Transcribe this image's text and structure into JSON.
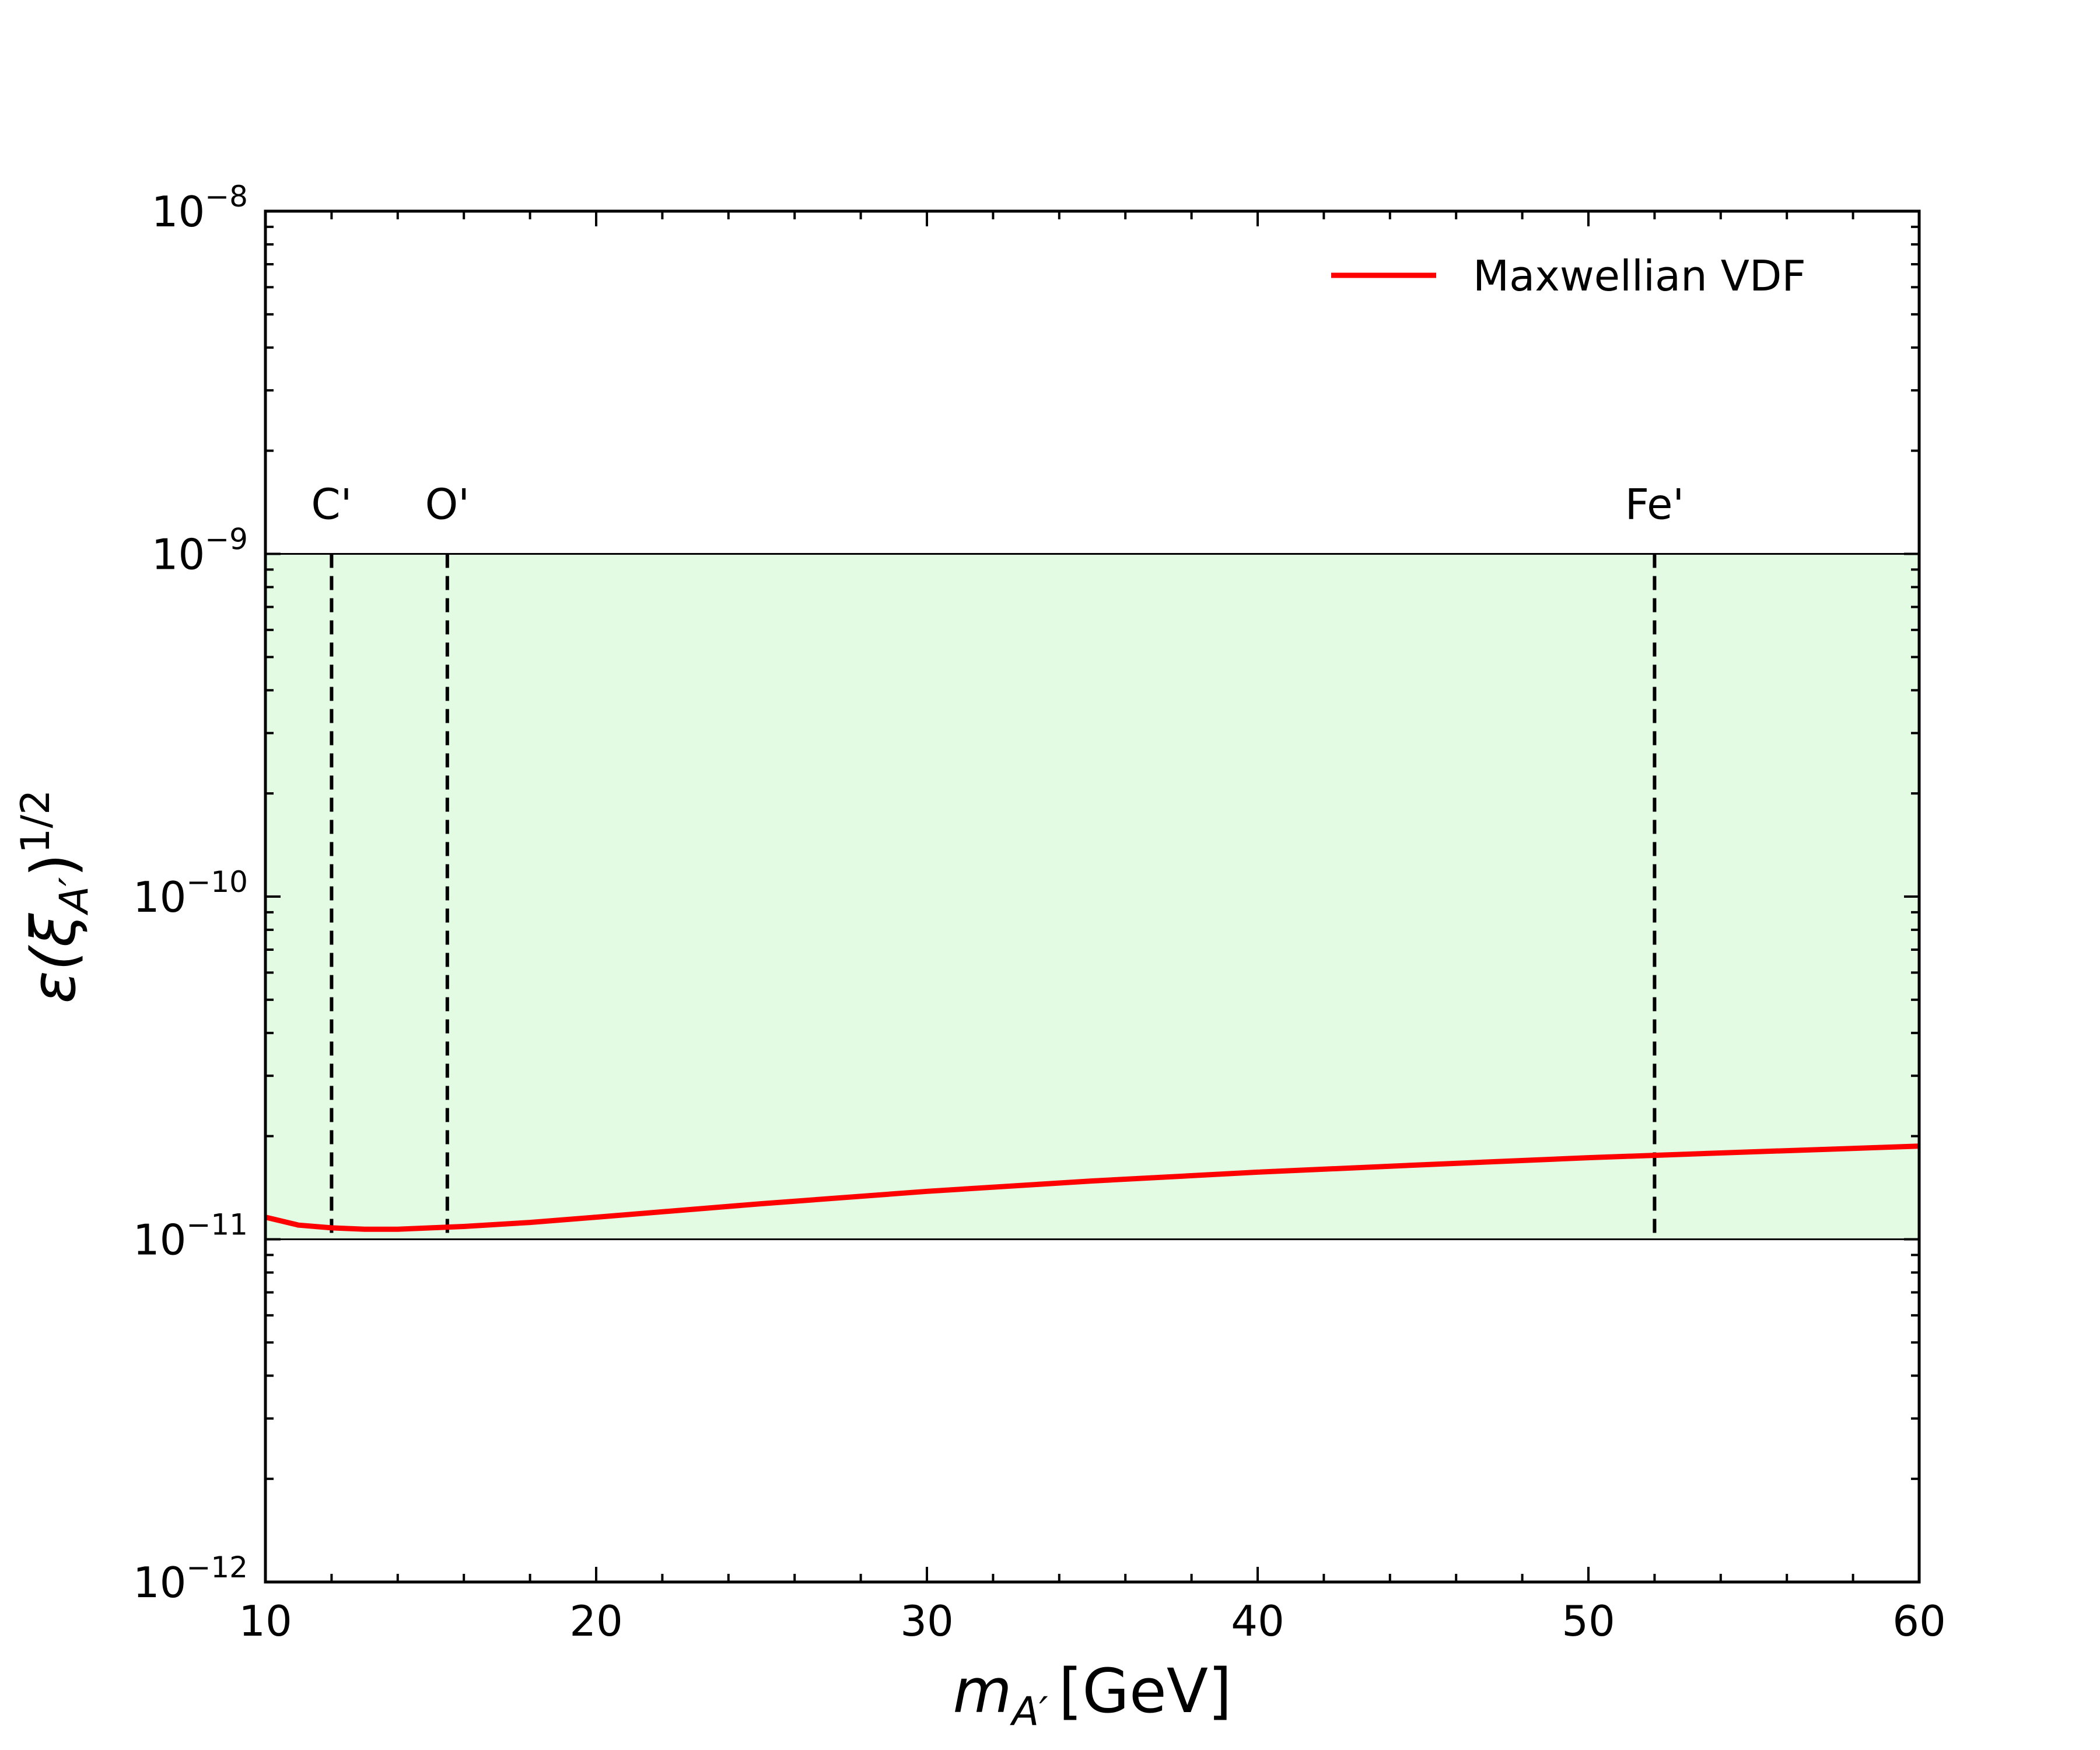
{
  "chart_data": {
    "type": "line",
    "title": "",
    "xlabel": {
      "main": "m",
      "sub": "A′",
      "unit": "[GeV]"
    },
    "ylabel": {
      "pre": "ε(ξ",
      "sub": "A′",
      "post": ")",
      "sup": "1/2"
    },
    "xlim": [
      10,
      60
    ],
    "ylim": [
      1e-12,
      1e-08
    ],
    "yscale": "log",
    "xticks": [
      10,
      20,
      30,
      40,
      50,
      60
    ],
    "xtick_labels": [
      "10",
      "20",
      "30",
      "40",
      "50",
      "60"
    ],
    "yticks": [
      -12,
      -11,
      -10,
      -9,
      -8
    ],
    "ytick_base": "10",
    "ytick_exponents": [
      "−12",
      "−11",
      "−10",
      "−9",
      "−8"
    ],
    "band": {
      "ymin": 1e-11,
      "ymax": 1e-09,
      "color": "#e2fbe2"
    },
    "vlines": [
      {
        "x": 12,
        "label": "C'"
      },
      {
        "x": 15.5,
        "label": "O'"
      },
      {
        "x": 52,
        "label": "Fe'"
      }
    ],
    "series": [
      {
        "name": "Maxwellian VDF",
        "color": "#ff0000",
        "x": [
          10,
          11,
          12,
          13,
          14,
          15,
          16,
          18,
          20,
          25,
          30,
          35,
          40,
          45,
          50,
          55,
          60
        ],
        "y": [
          1.16e-11,
          1.1e-11,
          1.08e-11,
          1.07e-11,
          1.07e-11,
          1.08e-11,
          1.09e-11,
          1.12e-11,
          1.16e-11,
          1.27e-11,
          1.38e-11,
          1.48e-11,
          1.57e-11,
          1.65e-11,
          1.73e-11,
          1.8e-11,
          1.87e-11
        ]
      }
    ],
    "legend_location": "top-right"
  }
}
